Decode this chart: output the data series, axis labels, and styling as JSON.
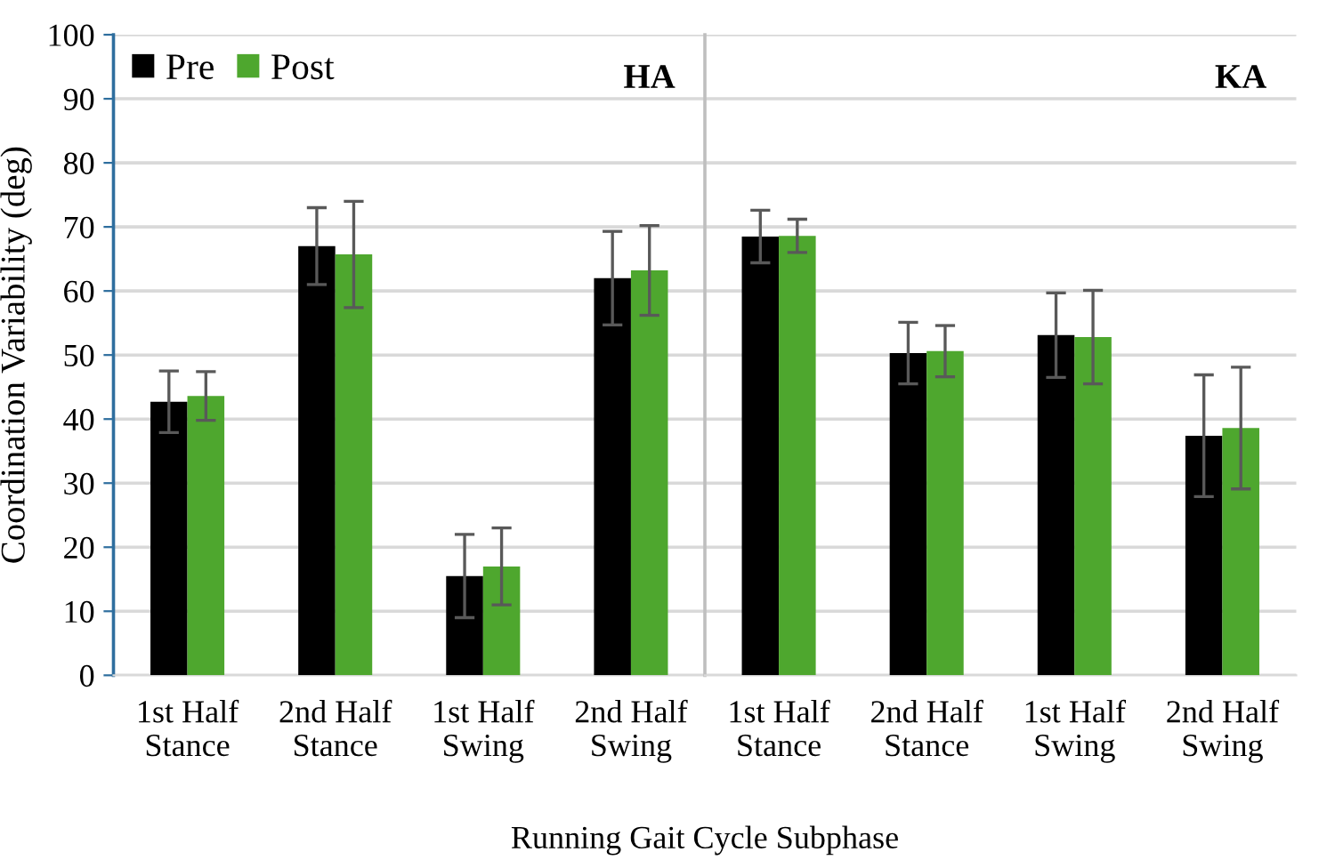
{
  "chart_data": [
    {
      "type": "bar",
      "xlabel": "Running Gait Cycle Subphase",
      "ylabel": "Coordination Variability (deg)",
      "categories": [
        "1st Half\nStance",
        "2nd Half\nStance",
        "1st Half\nSwing",
        "2nd Half\nSwing"
      ],
      "series": [
        {
          "name": "Pre",
          "color": "#000000",
          "values": [
            42.7,
            67,
            15.5,
            62
          ],
          "errors": [
            4.8,
            6,
            6.5,
            7.3
          ]
        },
        {
          "name": "Post",
          "color": "#4ea72e",
          "values": [
            43.6,
            65.7,
            17,
            63.2
          ],
          "errors": [
            3.8,
            8.3,
            6,
            7
          ]
        }
      ],
      "ylim": [
        0,
        100
      ],
      "yticks": [
        0,
        10,
        20,
        30,
        40,
        50,
        60,
        70,
        80,
        90,
        100
      ],
      "grid": "y",
      "legend": "top left",
      "annotations": [
        "HA"
      ]
    },
    {
      "type": "bar",
      "categories": [
        "1st Half\nStance",
        "2nd Half\nStance",
        "1st Half\nSwing",
        "2nd Half\nSwing"
      ],
      "series": [
        {
          "color": "#000000",
          "values": [
            68.5,
            50.3,
            53.1,
            37.4
          ],
          "errors": [
            4.1,
            4.8,
            6.6,
            9.5
          ]
        },
        {
          "color": "#4ea72e",
          "values": [
            68.6,
            50.6,
            52.8,
            38.6
          ],
          "errors": [
            2.6,
            4,
            7.3,
            9.5
          ]
        }
      ],
      "ylim": [
        0,
        100
      ],
      "yticks": [
        0,
        10,
        20,
        30,
        40,
        50,
        60,
        70,
        80,
        90,
        100
      ],
      "grid": "y",
      "tick_labels": "x",
      "annotations": [
        "KA"
      ]
    }
  ]
}
